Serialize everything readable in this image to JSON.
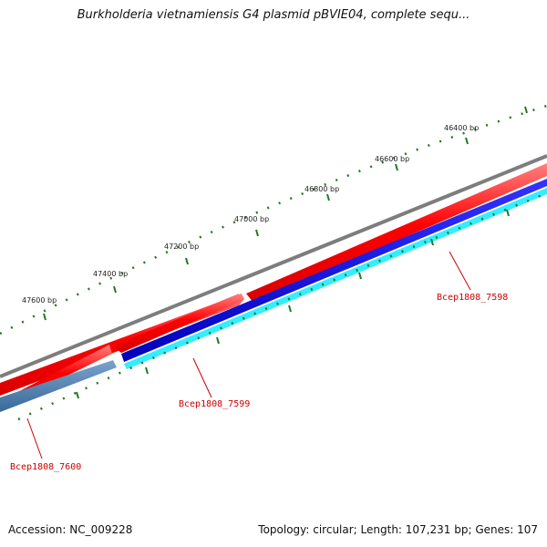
{
  "title": "Burkholderia vietnamiensis G4 plasmid pBVIE04, complete sequ...",
  "footer": {
    "accession": "Accession: NC_009228",
    "summary": "Topology: circular; Length: 107,231 bp; Genes: 107"
  },
  "tick_labels": [
    "46400 bp",
    "46600 bp",
    "46800 bp",
    "47000 bp",
    "47200 bp",
    "47400 bp",
    "47600 bp"
  ],
  "genes": [
    {
      "name": "Bcep1808_7598",
      "color": "#ff0000"
    },
    {
      "name": "Bcep1808_7599",
      "color": "#ff0000"
    },
    {
      "name": "Bcep1808_7600",
      "color": "#ff0000"
    }
  ],
  "colors": {
    "backbone": "#808080",
    "forward_cds": "#ff1a1a",
    "reverse_cds": "#0000cc",
    "reverse_cds_secondary": "#33ffff",
    "reverse_cds_partial": "#4a7fb5",
    "tick": "#1f7a1f",
    "label": "#cc0000"
  }
}
